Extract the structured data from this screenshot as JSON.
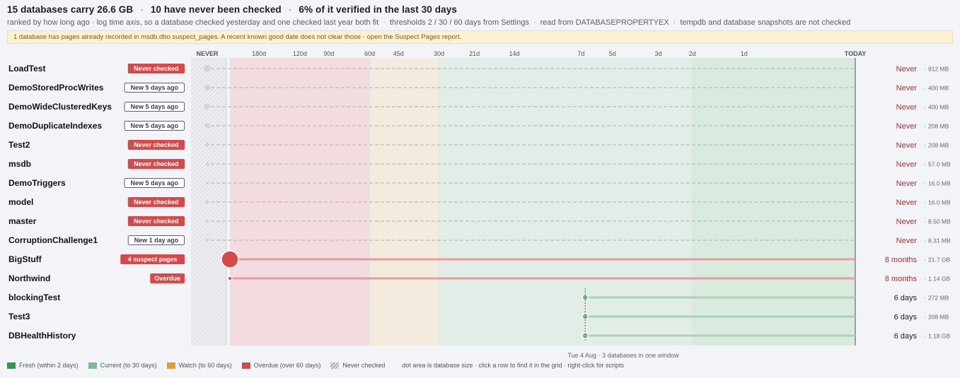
{
  "header": {
    "title_parts": [
      "15 databases carry 26.6 GB",
      "10 have never been checked",
      "6% of it verified in the last 30 days"
    ],
    "subtitle_parts": [
      "ranked by how long ago · log time axis, so a database checked yesterday and one checked last year both fit",
      "thresholds 2 / 30 / 60 days from Settings",
      "read from DATABASEPROPERTYEX",
      "tempdb and database snapshots are not checked"
    ],
    "banner": "1 database has pages already recorded in msdb.dbo.suspect_pages. A recent known good date does not clear those - open the Suspect Pages report."
  },
  "axis": {
    "ticks": [
      {
        "label": "NEVER",
        "days": null,
        "bold": true
      },
      {
        "label": "180d",
        "days": 180
      },
      {
        "label": "120d",
        "days": 120
      },
      {
        "label": "90d",
        "days": 90
      },
      {
        "label": "60d",
        "days": 60
      },
      {
        "label": "45d",
        "days": 45
      },
      {
        "label": "30d",
        "days": 30
      },
      {
        "label": "21d",
        "days": 21
      },
      {
        "label": "14d",
        "days": 14
      },
      {
        "label": "7d",
        "days": 7
      },
      {
        "label": "5d",
        "days": 5
      },
      {
        "label": "3d",
        "days": 3
      },
      {
        "label": "2d",
        "days": 2
      },
      {
        "label": "1d",
        "days": 1
      },
      {
        "label": "TODAY",
        "days": 0,
        "bold": true
      }
    ],
    "zones": [
      {
        "name": "overdue",
        "from_days": 240,
        "to_days": 60,
        "color": "#f2dcdf"
      },
      {
        "name": "watch",
        "from_days": 60,
        "to_days": 30,
        "color": "#f3ebdd"
      },
      {
        "name": "current",
        "from_days": 30,
        "to_days": 2,
        "color": "#e3ede8"
      },
      {
        "name": "fresh",
        "from_days": 2,
        "to_days": 0,
        "color": "#d9eadf"
      }
    ],
    "window_label": "Tue 4 Aug",
    "window_note": "3 databases in one window"
  },
  "databases": [
    {
      "name": "LoadTest",
      "badge": "Never checked",
      "badge_style": "red",
      "status": "never",
      "ago": "Never",
      "size": "912 MB",
      "size_mb": 912
    },
    {
      "name": "DemoStoredProcWrites",
      "badge": "New 5 days ago",
      "badge_style": "outline",
      "status": "never",
      "ago": "Never",
      "size": "400 MB",
      "size_mb": 400
    },
    {
      "name": "DemoWideClusteredKeys",
      "badge": "New 5 days ago",
      "badge_style": "outline",
      "status": "never",
      "ago": "Never",
      "size": "400 MB",
      "size_mb": 400
    },
    {
      "name": "DemoDuplicateIndexes",
      "badge": "New 5 days ago",
      "badge_style": "outline",
      "status": "never",
      "ago": "Never",
      "size": "208 MB",
      "size_mb": 208
    },
    {
      "name": "Test2",
      "badge": "Never checked",
      "badge_style": "red",
      "status": "never",
      "ago": "Never",
      "size": "208 MB",
      "size_mb": 208
    },
    {
      "name": "msdb",
      "badge": "Never checked",
      "badge_style": "red",
      "status": "never",
      "ago": "Never",
      "size": "57.0 MB",
      "size_mb": 57
    },
    {
      "name": "DemoTriggers",
      "badge": "New 5 days ago",
      "badge_style": "outline",
      "status": "never",
      "ago": "Never",
      "size": "16.0 MB",
      "size_mb": 16
    },
    {
      "name": "model",
      "badge": "Never checked",
      "badge_style": "red",
      "status": "never",
      "ago": "Never",
      "size": "16.0 MB",
      "size_mb": 16
    },
    {
      "name": "master",
      "badge": "Never checked",
      "badge_style": "red",
      "status": "never",
      "ago": "Never",
      "size": "8.50 MB",
      "size_mb": 8.5
    },
    {
      "name": "CorruptionChallenge1",
      "badge": "New 1 day ago",
      "badge_style": "outline",
      "status": "never",
      "ago": "Never",
      "size": "8.31 MB",
      "size_mb": 8.31
    },
    {
      "name": "BigStuff",
      "badge": "4 suspect pages",
      "badge_style": "red",
      "status": "overdue",
      "days_ago": 240,
      "ago": "8 months",
      "size": "21.7 GB",
      "size_mb": 22220
    },
    {
      "name": "Northwind",
      "badge": "Overdue",
      "badge_style": "red",
      "status": "overdue",
      "days_ago": 240,
      "ago": "8 months",
      "size": "1.14 GB",
      "size_mb": 1167
    },
    {
      "name": "blockingTest",
      "badge": "",
      "badge_style": "none",
      "status": "current",
      "days_ago": 6.7,
      "ago": "6 days",
      "size": "272 MB",
      "size_mb": 272
    },
    {
      "name": "Test3",
      "badge": "",
      "badge_style": "none",
      "status": "current",
      "days_ago": 6.7,
      "ago": "6 days",
      "size": "208 MB",
      "size_mb": 208
    },
    {
      "name": "DBHealthHistory",
      "badge": "",
      "badge_style": "none",
      "status": "current",
      "days_ago": 6.7,
      "ago": "6 days",
      "size": "1.18 GB",
      "size_mb": 1208
    }
  ],
  "colors": {
    "fresh": "#2e9a4e",
    "current": "#7dbd8e",
    "watch": "#e0a030",
    "overdue": "#d94848",
    "never_text": "#b52a2a",
    "overdue_line": "#eb9a9a",
    "current_line": "#a9d3b4"
  },
  "legend": {
    "items": [
      {
        "label": "Fresh (within 2 days)",
        "color": "#2e9a4e"
      },
      {
        "label": "Current (to 30 days)",
        "color": "#7dbd8e"
      },
      {
        "label": "Watch (to 60 days)",
        "color": "#e0a030"
      },
      {
        "label": "Overdue (over 60 days)",
        "color": "#d94848"
      },
      {
        "label": "Never checked",
        "color": "hatch"
      }
    ],
    "note": "dot area is database size · click a row to find it in the grid · right-click for scripts"
  }
}
